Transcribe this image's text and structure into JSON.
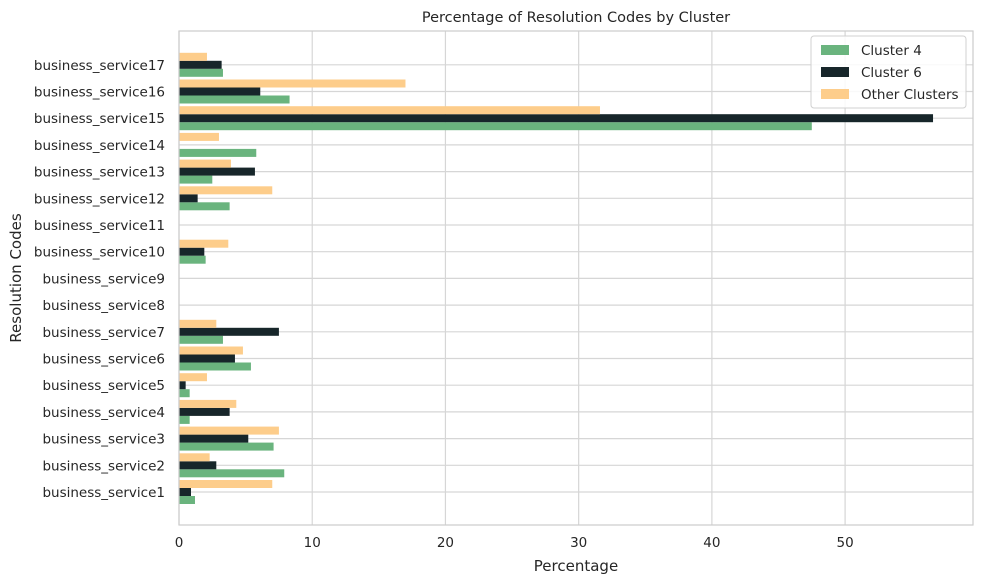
{
  "chart_data": {
    "type": "bar",
    "orientation": "horizontal",
    "title": "Percentage of Resolution Codes by Cluster",
    "xlabel": "Percentage",
    "ylabel": "Resolution Codes",
    "xlim": [
      0,
      59.6
    ],
    "xticks": [
      "0",
      "10",
      "20",
      "30",
      "40",
      "50"
    ],
    "xtick_values": [
      0,
      10,
      20,
      30,
      40,
      50
    ],
    "grid": true,
    "legend_position": "top-right",
    "categories": [
      "business_service1",
      "business_service2",
      "business_service3",
      "business_service4",
      "business_service5",
      "business_service6",
      "business_service7",
      "business_service8",
      "business_service9",
      "business_service10",
      "business_service11",
      "business_service12",
      "business_service13",
      "business_service14",
      "business_service15",
      "business_service16",
      "business_service17"
    ],
    "series": [
      {
        "name": "Cluster 4",
        "color": "#6ab47e",
        "values": [
          1.2,
          7.9,
          7.1,
          0.8,
          0.8,
          5.4,
          3.3,
          0,
          0,
          2.0,
          0,
          3.8,
          2.5,
          5.8,
          47.5,
          8.3,
          3.3
        ]
      },
      {
        "name": "Cluster 6",
        "color": "#17262a",
        "values": [
          0.9,
          2.8,
          5.2,
          3.8,
          0.5,
          4.2,
          7.5,
          0,
          0,
          1.9,
          0,
          1.4,
          5.7,
          0,
          56.6,
          6.1,
          3.2
        ]
      },
      {
        "name": "Other Clusters",
        "color": "#fdcd8b",
        "values": [
          7.0,
          2.3,
          7.5,
          4.3,
          2.1,
          4.8,
          2.8,
          0,
          0,
          3.7,
          0,
          7.0,
          3.9,
          3.0,
          31.6,
          17.0,
          2.1
        ]
      }
    ]
  }
}
